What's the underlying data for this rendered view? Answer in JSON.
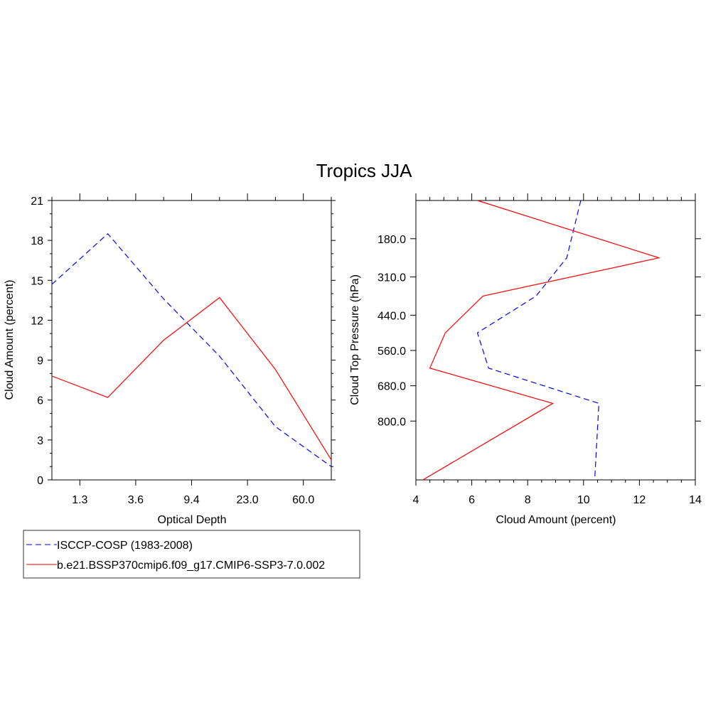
{
  "title": "Tropics JJA",
  "chart_data": [
    {
      "type": "line",
      "xlabel": "Optical Depth",
      "ylabel": "Cloud Amount (percent)",
      "x_tick_labels": [
        "1.3",
        "3.6",
        "9.4",
        "23.0",
        "60.0"
      ],
      "y_tick_labels": [
        "0",
        "3",
        "6",
        "9",
        "12",
        "15",
        "18",
        "21"
      ],
      "ylim": [
        0,
        21
      ],
      "x_bins": [
        "0.3",
        "1.3",
        "2.2",
        "3.6",
        "6.0",
        "9.4",
        "15.0",
        "23.0",
        "41.0",
        "60.0",
        "380.0"
      ],
      "series": [
        {
          "name": "ISCCP-COSP (1983-2008)",
          "color": "#0000ff",
          "dash": "dashed",
          "x": [
            "0.3",
            "2.2",
            "6.0",
            "15.0",
            "41.0",
            "380.0"
          ],
          "values": [
            14.7,
            18.5,
            13.6,
            9.3,
            4.0,
            1.0
          ]
        },
        {
          "name": "b.e21.BSSP370cmip6.f09_g17.CMIP6-SSP3-7.0.002",
          "color": "#ff0000",
          "dash": "solid",
          "x": [
            "0.3",
            "2.2",
            "6.0",
            "15.0",
            "41.0",
            "380.0"
          ],
          "values": [
            7.8,
            6.2,
            10.5,
            13.7,
            8.3,
            1.5
          ]
        }
      ],
      "grid": false
    },
    {
      "type": "line",
      "xlabel": "Cloud Amount (percent)",
      "ylabel": "Cloud Top Pressure (hPa)",
      "x_tick_labels": [
        "4",
        "6",
        "8",
        "10",
        "12",
        "14"
      ],
      "xlim": [
        4,
        14
      ],
      "y_tick_labels": [
        "180.0",
        "310.0",
        "440.0",
        "560.0",
        "680.0",
        "800.0"
      ],
      "y_bins": [
        "50.0",
        "180.0",
        "310.0",
        "440.0",
        "560.0",
        "680.0",
        "800.0",
        "1000.0"
      ],
      "series": [
        {
          "name": "ISCCP-COSP (1983-2008)",
          "color": "#0000ff",
          "dash": "dashed",
          "y": [
            "50.0",
            "245.0",
            "375.0",
            "500.0",
            "620.0",
            "740.0",
            "1000.0"
          ],
          "values": [
            9.9,
            9.4,
            8.3,
            6.2,
            6.6,
            10.55,
            10.4
          ]
        },
        {
          "name": "b.e21.BSSP370cmip6.f09_g17.CMIP6-SSP3-7.0.002",
          "color": "#ff0000",
          "dash": "solid",
          "y": [
            "50.0",
            "245.0",
            "375.0",
            "500.0",
            "620.0",
            "740.0",
            "1000.0"
          ],
          "values": [
            6.2,
            12.7,
            6.4,
            5.05,
            4.5,
            8.9,
            4.25
          ]
        }
      ],
      "grid": false
    }
  ],
  "legend": {
    "placement": "bottom-left",
    "entries": [
      {
        "label": "ISCCP-COSP (1983-2008)",
        "color": "#0000ff",
        "dash": "dashed"
      },
      {
        "label": "b.e21.BSSP370cmip6.f09_g17.CMIP6-SSP3-7.0.002",
        "color": "#ff0000",
        "dash": "solid"
      }
    ]
  }
}
